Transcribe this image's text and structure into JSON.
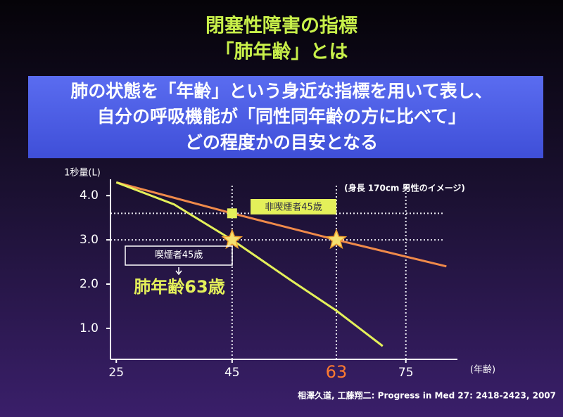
{
  "slide": {
    "title_lines": [
      "閉塞性障害の指標",
      "「肺年齢」とは"
    ],
    "box_lines": [
      "肺の状態を「年齢」という身近な指標を用いて表し、",
      "自分の呼吸機能が「同性同年齢の方に比べて」",
      "どの程度かの目安となる"
    ],
    "citation": "相澤久道, 工藤翔二: Progress in Med 27: 2418-2423, 2007"
  },
  "chart_data": {
    "type": "line",
    "y_label": "1秒量(L)",
    "x_label": "(年齢)",
    "note": "(身長 170cm 男性のイメージ)",
    "xlim": [
      24,
      85
    ],
    "ylim": [
      0.3,
      4.4
    ],
    "xticks": [
      25,
      45,
      75
    ],
    "yticks": [
      {
        "value": 1,
        "label": "1.0"
      },
      {
        "value": 2,
        "label": "2.0"
      },
      {
        "value": 3,
        "label": "3.0"
      },
      {
        "value": 4,
        "label": "4.0"
      }
    ],
    "highlight_tick": {
      "value": 63,
      "label": "63",
      "color": "#ff7a30"
    },
    "ref_hlines": [
      3.6,
      3.0
    ],
    "ref_vlines": [
      45,
      63,
      75
    ],
    "series": [
      {
        "color": "#f08a4a",
        "x": [
          25,
          45,
          63,
          82
        ],
        "values": [
          4.3,
          3.6,
          3.0,
          2.4
        ]
      },
      {
        "color": "#e4f05a",
        "x": [
          25,
          35,
          45,
          55,
          63,
          71
        ],
        "values": [
          4.3,
          3.8,
          3.0,
          2.1,
          1.4,
          0.6
        ]
      }
    ],
    "markers": [
      {
        "x": 45,
        "y": 3.6,
        "shape": "square",
        "color": "#e4f05a"
      },
      {
        "x": 45,
        "y": 3.0,
        "shape": "star",
        "color": "#f5e070"
      },
      {
        "x": 63,
        "y": 3.0,
        "shape": "star",
        "color": "#f5e070"
      }
    ],
    "annotations": [
      "非喫煙者45歳",
      "喫煙者45歳",
      "肺年齢63歳"
    ]
  }
}
